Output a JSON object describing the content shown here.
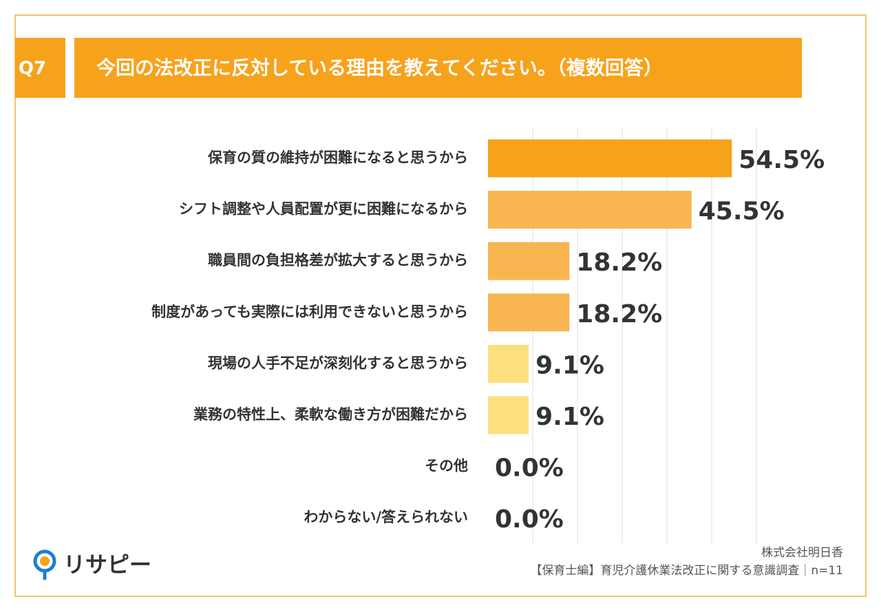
{
  "badge": "Q7",
  "chart_data": {
    "type": "bar",
    "orientation": "horizontal",
    "title": "今回の法改正に反対している理由を教えてください。（複数回答）",
    "categories": [
      "保育の質の維持が困難になると思うから",
      "シフト調整や人員配置が更に困難になるから",
      "職員間の負担格差が拡大すると思うから",
      "制度があっても実際には利用できないと思うから",
      "現場の人手不足が深刻化すると思うから",
      "業務の特性上、柔軟な働き方が困難だから",
      "その他",
      "わからない/答えられない"
    ],
    "values": [
      54.5,
      45.5,
      18.2,
      18.2,
      9.1,
      9.1,
      0.0,
      0.0
    ],
    "value_labels": [
      "54.5%",
      "45.5%",
      "18.2%",
      "18.2%",
      "9.1%",
      "9.1%",
      "0.0%",
      "0.0%"
    ],
    "colors": [
      "#f7a21b",
      "#f8b552",
      "#f8b552",
      "#f8b552",
      "#fde07e",
      "#fde07e",
      "#fde07e",
      "#fde07e"
    ],
    "xlim": [
      0,
      60
    ],
    "xticks": [
      10,
      20,
      30,
      40,
      50,
      60
    ],
    "grid": true
  },
  "footer": {
    "logo": "リサピー",
    "company": "株式会社明日香",
    "survey": "【保育士編】育児介護休業法改正に関する意識調査｜n=11"
  }
}
